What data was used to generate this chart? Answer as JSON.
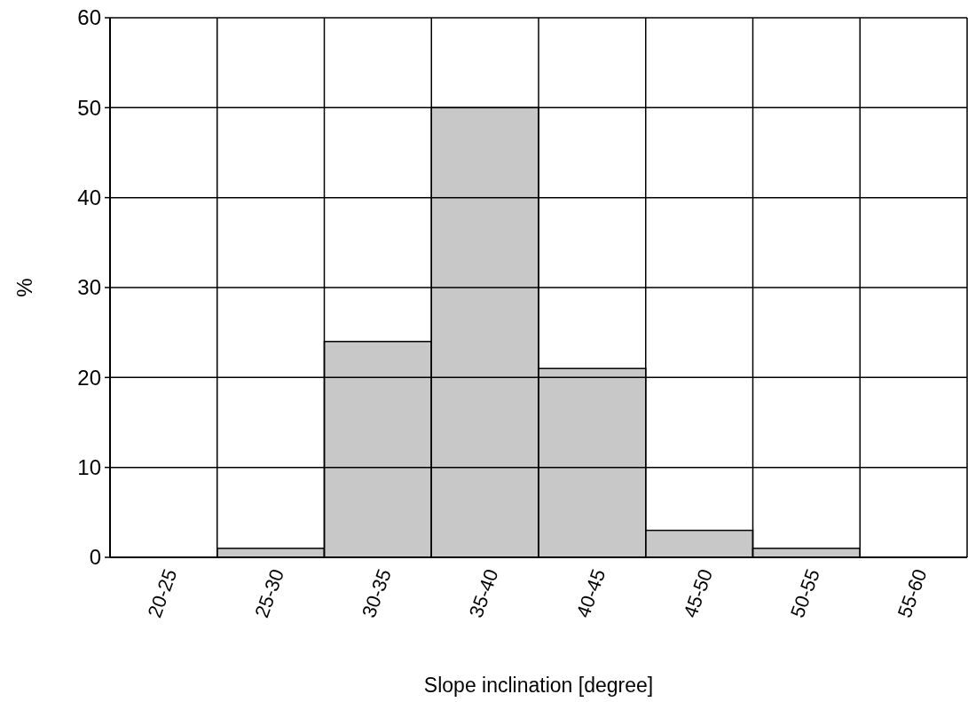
{
  "chart_data": {
    "type": "bar",
    "xlabel": "Slope inclination [degree]",
    "ylabel": "%",
    "categories": [
      "20-25",
      "25-30",
      "30-35",
      "35-40",
      "40-45",
      "45-50",
      "50-55",
      "55-60"
    ],
    "values": [
      0,
      1,
      24,
      50,
      21,
      3,
      1,
      0
    ],
    "color": "#c8c8c8",
    "ylim": [
      0,
      60
    ],
    "yticks": [
      0,
      10,
      20,
      30,
      40,
      50,
      60
    ],
    "grid": true
  }
}
